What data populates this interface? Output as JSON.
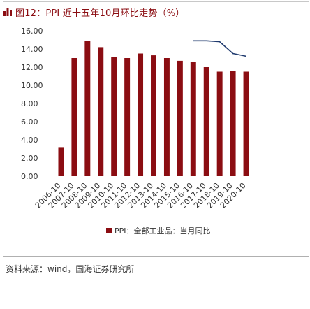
{
  "figure": {
    "title": "图12：PPI 近十五年10月环比走势（%）",
    "icon": "bar-chart-icon",
    "source": "资料来源：wind，国海证券研究所"
  },
  "colors": {
    "title": "#8b0d12",
    "bar": "#8b0d12",
    "line": "#1f3a6e"
  },
  "chart_data": {
    "type": "bar",
    "title": "",
    "xlabel": "",
    "ylabel": "",
    "ylim": [
      0,
      16
    ],
    "yticks": [
      "0.00",
      "2.00",
      "4.00",
      "6.00",
      "8.00",
      "10.00",
      "12.00",
      "14.00",
      "16.00"
    ],
    "categories": [
      "2006-10",
      "2007-10",
      "2008-10",
      "2009-10",
      "2010-10",
      "2011-10",
      "2012-10",
      "2013-10",
      "2014-10",
      "2015-10",
      "2016-10",
      "2017-10",
      "2018-10",
      "2019-10",
      "2020-10"
    ],
    "series": [
      {
        "name": "PPI：全部工业品：当月同比",
        "values": [
          3.2,
          13.0,
          14.9,
          14.2,
          13.1,
          13.0,
          13.5,
          13.3,
          13.0,
          12.7,
          12.6,
          12.0,
          11.5,
          11.6,
          11.5
        ]
      }
    ],
    "overlay_line": {
      "values": [
        null,
        null,
        null,
        null,
        null,
        null,
        null,
        null,
        null,
        null,
        14.9,
        14.9,
        14.8,
        13.5,
        13.2
      ]
    },
    "legend_position": "bottom-center",
    "grid": false
  }
}
